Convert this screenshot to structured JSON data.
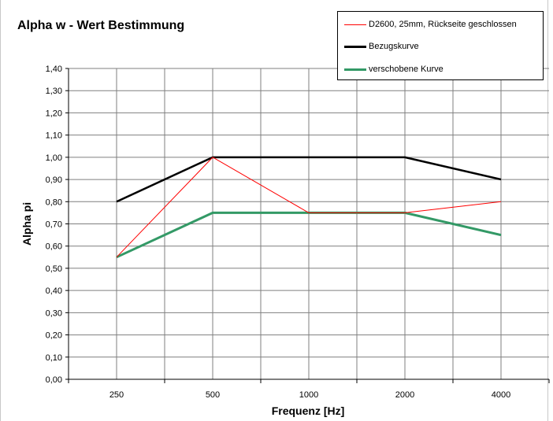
{
  "chart_data": {
    "type": "line",
    "title": "Alpha w - Wert Bestimmung",
    "xlabel": "Frequenz [Hz]",
    "ylabel": "Alpha pi",
    "categories": [
      "250",
      "500",
      "1000",
      "2000",
      "4000"
    ],
    "ylim": [
      0,
      1.4
    ],
    "yticks": [
      "0,00",
      "0,10",
      "0,20",
      "0,30",
      "0,40",
      "0,50",
      "0,60",
      "0,70",
      "0,80",
      "0,90",
      "1,00",
      "1,10",
      "1,20",
      "1,30",
      "1,40"
    ],
    "grid": true,
    "legend_position": "top-right",
    "series": [
      {
        "name": "D2600, 25mm, Rückseite geschlossen",
        "color": "#ff0000",
        "values": [
          0.55,
          1.0,
          0.75,
          0.75,
          0.8
        ]
      },
      {
        "name": "Bezugskurve",
        "color": "#000000",
        "values": [
          0.8,
          1.0,
          1.0,
          1.0,
          0.9
        ]
      },
      {
        "name": "verschobene Kurve",
        "color": "#339966",
        "values": [
          0.55,
          0.75,
          0.75,
          0.75,
          0.65
        ]
      }
    ]
  }
}
